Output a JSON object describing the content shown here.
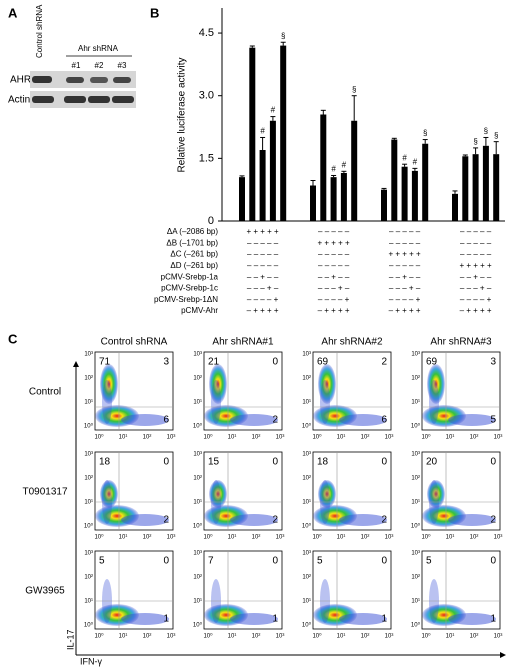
{
  "panel_a": {
    "label": "A",
    "control": "Control shRNA",
    "ahr": "Ahr shRNA",
    "lanes": [
      "#1",
      "#2",
      "#3"
    ],
    "rows": [
      "AHR",
      "Actin"
    ]
  },
  "chart_data": {
    "type": "bar",
    "panel": "B",
    "y_label": "Relative luciferase activity",
    "color": "#000000",
    "ylim": [
      0,
      5.1
    ],
    "yticks": [
      0,
      1.5,
      {
        "value": 3,
        "label": "3.0"
      },
      4.5
    ],
    "groups": [
      {
        "values": [
          1.05,
          4.15,
          1.7,
          2.4,
          4.2
        ],
        "errors": [
          0.03,
          0.04,
          0.3,
          0.1,
          0.08
        ],
        "annotations": [
          null,
          null,
          "#",
          "#",
          "§"
        ]
      },
      {
        "values": [
          0.85,
          2.55,
          1.05,
          1.15,
          2.4
        ],
        "errors": [
          0.12,
          0.1,
          0.04,
          0.04,
          0.6
        ],
        "annotations": [
          null,
          null,
          "#",
          "#",
          "§"
        ]
      },
      {
        "values": [
          0.75,
          1.95,
          1.3,
          1.2,
          1.85
        ],
        "errors": [
          0.03,
          0.03,
          0.06,
          0.06,
          0.1
        ],
        "annotations": [
          null,
          null,
          "#",
          "#",
          "§"
        ]
      },
      {
        "values": [
          0.65,
          1.55,
          1.6,
          1.8,
          1.6
        ],
        "errors": [
          0.07,
          0.03,
          0.15,
          0.2,
          0.3
        ],
        "annotations": [
          null,
          null,
          "§",
          "§",
          "§"
        ]
      }
    ],
    "conditions": [
      {
        "label": "ΔA (–2086 bp)",
        "signs": [
          "+ + + + +",
          "– – – – –",
          "– – – – –",
          "– – – – –"
        ]
      },
      {
        "label": "ΔB (–1701 bp)",
        "signs": [
          "– – – – –",
          "+ + + + +",
          "– – – – –",
          "– – – – –"
        ]
      },
      {
        "label": "ΔC (–261 bp)",
        "signs": [
          "– – – – –",
          "– – – – –",
          "+ + + + +",
          "– – – – –"
        ]
      },
      {
        "label": "ΔD (–261 bp)",
        "signs": [
          "– – – – –",
          "– – – – –",
          "– – – – –",
          "+ + + + +"
        ]
      },
      {
        "label": "pCMV-Srebp-1a",
        "signs": [
          "– – + – –",
          "– – + – –",
          "– – + – –",
          "– – + – –"
        ]
      },
      {
        "label": "pCMV-Srebp-1c",
        "signs": [
          "– – – + –",
          "– – – + –",
          "– – – + –",
          "– – – + –"
        ]
      },
      {
        "label": "pCMV-Srebp-1ΔN",
        "signs": [
          "– – – – +",
          "– – – – +",
          "– – – – +",
          "– – – – +"
        ]
      },
      {
        "label": "pCMV-Ahr",
        "signs": [
          "– + + + +",
          "– + + + +",
          "– + + + +",
          "– + + + +"
        ]
      }
    ]
  },
  "panel_c": {
    "label": "C",
    "columns": [
      "Control shRNA",
      "Ahr shRNA#1",
      "Ahr shRNA#2",
      "Ahr shRNA#3"
    ],
    "rows": [
      {
        "label": "Control",
        "quadrants": [
          [
            71,
            3,
            6
          ],
          [
            21,
            0,
            2
          ],
          [
            69,
            2,
            6
          ],
          [
            69,
            3,
            5
          ]
        ]
      },
      {
        "label": "T0901317",
        "quadrants": [
          [
            18,
            0,
            2
          ],
          [
            15,
            0,
            2
          ],
          [
            18,
            0,
            2
          ],
          [
            20,
            0,
            2
          ]
        ]
      },
      {
        "label": "GW3965",
        "quadrants": [
          [
            5,
            0,
            1
          ],
          [
            7,
            0,
            1
          ],
          [
            5,
            0,
            1
          ],
          [
            5,
            0,
            1
          ]
        ]
      }
    ],
    "tick_labels": [
      "10⁰",
      "10¹",
      "10²",
      "10³"
    ],
    "y_axis": "IL-17",
    "x_axis": "IFN-γ"
  }
}
